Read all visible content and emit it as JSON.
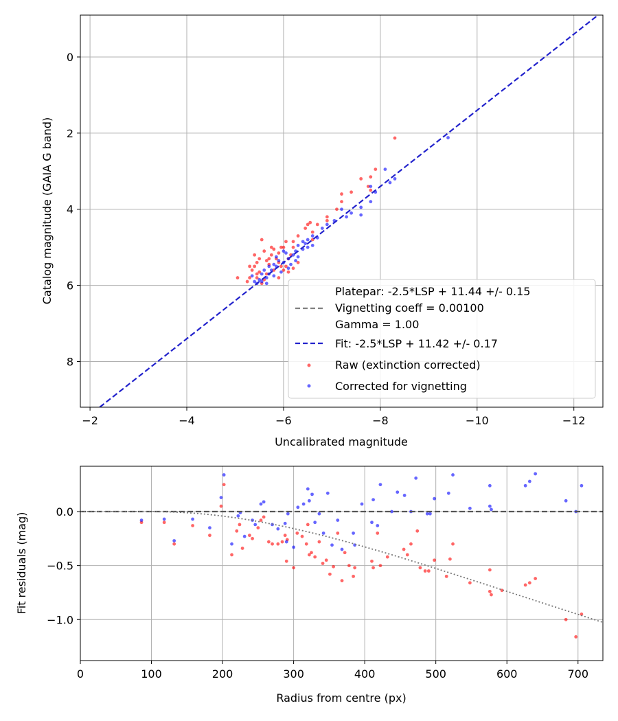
{
  "chart_data": [
    {
      "type": "scatter",
      "xlabel": "Uncalibrated magnitude",
      "ylabel": "Catalog magnitude (GAIA G band)",
      "xlim": [
        -1.8,
        -12.6
      ],
      "ylim": [
        9.2,
        -1.1
      ],
      "y_inverted": true,
      "x_inverted": true,
      "grid": true,
      "xticks": [
        -2,
        -4,
        -6,
        -8,
        -10,
        -12
      ],
      "xtick_labels": [
        "−2",
        "−4",
        "−6",
        "−8",
        "−10",
        "−12"
      ],
      "yticks": [
        0,
        2,
        4,
        6,
        8
      ],
      "ytick_labels": [
        "0",
        "2",
        "4",
        "6",
        "8"
      ],
      "legend_location": "lower-right",
      "legend": {
        "platepar_line1": "Platepar: -2.5*LSP + 11.44 +/- 0.15",
        "platepar_line2": "Vignetting coeff = 0.00100",
        "platepar_line3": "Gamma = 1.00",
        "fit": "Fit: -2.5*LSP + 11.42 +/- 0.17",
        "raw": "Raw (extinction corrected)",
        "corrected": "Corrected for vignetting"
      },
      "colors": {
        "raw": "#ff0000",
        "corrected": "#0000ff",
        "fit": "#2222cc",
        "platepar": "#808080"
      },
      "lines": [
        {
          "name": "Fit: -2.5*LSP + 11.42 +/- 0.17",
          "style": "dashed",
          "color": "#2222cc",
          "x": [
            -1.8,
            -12.6
          ],
          "y": [
            9.6,
            -1.2
          ]
        }
      ],
      "series": [
        {
          "name": "Raw (extinction corrected)",
          "color": "#ff0000",
          "points": [
            [
              -8.3,
              2.13
            ],
            [
              -7.8,
              3.15
            ],
            [
              -7.75,
              3.4
            ],
            [
              -7.8,
              3.5
            ],
            [
              -7.9,
              2.95
            ],
            [
              -7.6,
              3.2
            ],
            [
              -7.4,
              3.55
            ],
            [
              -7.2,
              3.6
            ],
            [
              -7.2,
              3.8
            ],
            [
              -7.1,
              4.0
            ],
            [
              -6.9,
              4.2
            ],
            [
              -6.9,
              4.3
            ],
            [
              -6.7,
              4.4
            ],
            [
              -6.6,
              4.6
            ],
            [
              -6.5,
              4.4
            ],
            [
              -6.6,
              4.8
            ],
            [
              -6.45,
              4.5
            ],
            [
              -6.55,
              4.35
            ],
            [
              -6.3,
              4.7
            ],
            [
              -6.2,
              4.85
            ],
            [
              -6.2,
              5.0
            ],
            [
              -6.0,
              5.0
            ],
            [
              -6.05,
              4.85
            ],
            [
              -5.9,
              5.15
            ],
            [
              -5.8,
              5.05
            ],
            [
              -5.75,
              5.2
            ],
            [
              -5.7,
              5.3
            ],
            [
              -5.6,
              5.1
            ],
            [
              -5.55,
              4.8
            ],
            [
              -5.5,
              5.3
            ],
            [
              -5.45,
              5.4
            ],
            [
              -5.4,
              5.5
            ],
            [
              -5.35,
              5.6
            ],
            [
              -5.3,
              5.5
            ],
            [
              -5.3,
              5.8
            ],
            [
              -5.25,
              5.9
            ],
            [
              -5.05,
              5.8
            ],
            [
              -5.45,
              5.8
            ],
            [
              -5.55,
              5.95
            ],
            [
              -5.6,
              5.85
            ],
            [
              -5.7,
              5.45
            ],
            [
              -5.8,
              5.6
            ],
            [
              -5.85,
              5.3
            ],
            [
              -5.9,
              5.4
            ],
            [
              -5.95,
              5.5
            ],
            [
              -6.0,
              5.6
            ],
            [
              -6.1,
              5.3
            ],
            [
              -6.15,
              5.2
            ],
            [
              -5.65,
              5.7
            ],
            [
              -5.5,
              5.65
            ],
            [
              -5.4,
              5.2
            ],
            [
              -5.75,
              5.0
            ],
            [
              -5.9,
              5.8
            ],
            [
              -6.1,
              5.65
            ],
            [
              -6.2,
              5.55
            ],
            [
              -6.3,
              5.4
            ],
            [
              -5.65,
              5.35
            ],
            [
              -5.95,
              5.0
            ],
            [
              -6.05,
              5.5
            ],
            [
              -5.45,
              5.7
            ]
          ]
        },
        {
          "name": "Corrected for vignetting",
          "color": "#0000ff",
          "points": [
            [
              -9.4,
              2.12
            ],
            [
              -8.3,
              3.2
            ],
            [
              -8.2,
              3.3
            ],
            [
              -8.1,
              2.95
            ],
            [
              -7.9,
              3.55
            ],
            [
              -7.8,
              3.4
            ],
            [
              -7.8,
              3.8
            ],
            [
              -7.6,
              3.95
            ],
            [
              -7.6,
              4.15
            ],
            [
              -7.4,
              4.1
            ],
            [
              -7.3,
              4.2
            ],
            [
              -7.2,
              4.0
            ],
            [
              -7.05,
              4.3
            ],
            [
              -6.9,
              4.4
            ],
            [
              -6.8,
              4.5
            ],
            [
              -6.6,
              4.7
            ],
            [
              -6.5,
              4.8
            ],
            [
              -6.6,
              4.95
            ],
            [
              -6.4,
              4.85
            ],
            [
              -6.3,
              4.95
            ],
            [
              -6.25,
              5.1
            ],
            [
              -6.2,
              5.2
            ],
            [
              -6.1,
              5.3
            ],
            [
              -6.05,
              5.15
            ],
            [
              -6.0,
              5.4
            ],
            [
              -5.9,
              5.35
            ],
            [
              -5.85,
              5.5
            ],
            [
              -5.8,
              5.45
            ],
            [
              -5.75,
              5.6
            ],
            [
              -5.7,
              5.7
            ],
            [
              -5.65,
              5.8
            ],
            [
              -5.6,
              5.6
            ],
            [
              -5.55,
              5.9
            ],
            [
              -5.5,
              5.85
            ],
            [
              -5.4,
              5.9
            ],
            [
              -5.35,
              5.75
            ],
            [
              -5.55,
              5.7
            ],
            [
              -5.7,
              5.5
            ],
            [
              -5.85,
              5.25
            ],
            [
              -6.0,
              5.1
            ],
            [
              -6.15,
              5.45
            ],
            [
              -6.3,
              5.25
            ],
            [
              -6.4,
              5.05
            ],
            [
              -6.5,
              5.0
            ],
            [
              -5.95,
              5.65
            ],
            [
              -6.1,
              5.55
            ],
            [
              -5.8,
              5.75
            ],
            [
              -5.65,
              5.95
            ],
            [
              -5.45,
              5.95
            ],
            [
              -6.25,
              5.35
            ],
            [
              -6.45,
              4.9
            ],
            [
              -6.7,
              4.75
            ]
          ]
        }
      ]
    },
    {
      "type": "scatter",
      "xlabel": "Radius from centre (px)",
      "ylabel": "Fit residuals (mag)",
      "xlim": [
        0,
        735
      ],
      "ylim": [
        -1.38,
        0.42
      ],
      "grid": true,
      "xticks": [
        0,
        100,
        200,
        300,
        400,
        500,
        600,
        700
      ],
      "xtick_labels": [
        "0",
        "100",
        "200",
        "300",
        "400",
        "500",
        "600",
        "700"
      ],
      "yticks": [
        0.0,
        -0.5,
        -1.0
      ],
      "ytick_labels": [
        "0.0",
        "−0.5",
        "−1.0"
      ],
      "lines": [
        {
          "name": "zero",
          "style": "dashed",
          "color": "#555555",
          "x": [
            0,
            735
          ],
          "y": [
            0,
            0
          ]
        },
        {
          "name": "vignetting",
          "style": "dotted",
          "color": "#777777",
          "vignetting_coeff": 0.001,
          "start_radius": 100
        }
      ],
      "series": [
        {
          "name": "Raw (extinction corrected)",
          "color": "#ff0000",
          "points": [
            [
              86,
              -0.1
            ],
            [
              118,
              -0.1
            ],
            [
              132,
              -0.3
            ],
            [
              158,
              -0.13
            ],
            [
              182,
              -0.22
            ],
            [
              198,
              0.05
            ],
            [
              202,
              0.25
            ],
            [
              213,
              -0.4
            ],
            [
              220,
              -0.18
            ],
            [
              224,
              -0.12
            ],
            [
              228,
              -0.34
            ],
            [
              238,
              -0.22
            ],
            [
              242,
              -0.25
            ],
            [
              250,
              -0.15
            ],
            [
              254,
              -0.08
            ],
            [
              258,
              -0.05
            ],
            [
              265,
              -0.28
            ],
            [
              270,
              -0.3
            ],
            [
              278,
              -0.3
            ],
            [
              284,
              -0.28
            ],
            [
              288,
              -0.22
            ],
            [
              290,
              -0.46
            ],
            [
              291,
              -0.26
            ],
            [
              300,
              -0.52
            ],
            [
              305,
              -0.2
            ],
            [
              312,
              -0.23
            ],
            [
              318,
              -0.3
            ],
            [
              320,
              -0.12
            ],
            [
              322,
              -0.4
            ],
            [
              325,
              -0.38
            ],
            [
              330,
              -0.42
            ],
            [
              336,
              -0.28
            ],
            [
              341,
              -0.48
            ],
            [
              346,
              -0.45
            ],
            [
              351,
              -0.58
            ],
            [
              356,
              -0.51
            ],
            [
              362,
              -0.2
            ],
            [
              368,
              -0.64
            ],
            [
              372,
              -0.38
            ],
            [
              378,
              -0.5
            ],
            [
              384,
              -0.6
            ],
            [
              386,
              -0.52
            ],
            [
              410,
              -0.46
            ],
            [
              412,
              -0.52
            ],
            [
              418,
              -0.2
            ],
            [
              422,
              -0.5
            ],
            [
              432,
              -0.42
            ],
            [
              455,
              -0.35
            ],
            [
              460,
              -0.4
            ],
            [
              465,
              -0.3
            ],
            [
              474,
              -0.18
            ],
            [
              478,
              -0.52
            ],
            [
              485,
              -0.55
            ],
            [
              490,
              -0.55
            ],
            [
              498,
              -0.45
            ],
            [
              515,
              -0.6
            ],
            [
              520,
              -0.44
            ],
            [
              524,
              -0.3
            ],
            [
              548,
              -0.66
            ],
            [
              576,
              -0.54
            ],
            [
              576,
              -0.74
            ],
            [
              578,
              -0.77
            ],
            [
              593,
              -0.73
            ],
            [
              626,
              -0.68
            ],
            [
              632,
              -0.66
            ],
            [
              640,
              -0.62
            ],
            [
              683,
              -1.0
            ],
            [
              697,
              -1.16
            ],
            [
              705,
              -0.95
            ]
          ]
        },
        {
          "name": "Corrected for vignetting",
          "color": "#0000ff",
          "points": [
            [
              86,
              -0.08
            ],
            [
              118,
              -0.07
            ],
            [
              132,
              -0.27
            ],
            [
              158,
              -0.07
            ],
            [
              182,
              -0.15
            ],
            [
              198,
              0.13
            ],
            [
              202,
              0.34
            ],
            [
              213,
              -0.3
            ],
            [
              222,
              -0.04
            ],
            [
              225,
              -0.01
            ],
            [
              231,
              -0.23
            ],
            [
              242,
              -0.08
            ],
            [
              246,
              -0.12
            ],
            [
              254,
              0.07
            ],
            [
              258,
              0.09
            ],
            [
              270,
              -0.12
            ],
            [
              278,
              -0.16
            ],
            [
              288,
              -0.11
            ],
            [
              290,
              -0.28
            ],
            [
              292,
              -0.02
            ],
            [
              300,
              -0.33
            ],
            [
              306,
              0.04
            ],
            [
              314,
              0.07
            ],
            [
              320,
              0.21
            ],
            [
              322,
              0.1
            ],
            [
              326,
              0.16
            ],
            [
              330,
              -0.1
            ],
            [
              336,
              -0.02
            ],
            [
              342,
              -0.2
            ],
            [
              348,
              0.17
            ],
            [
              354,
              -0.31
            ],
            [
              362,
              -0.08
            ],
            [
              368,
              -0.35
            ],
            [
              384,
              -0.2
            ],
            [
              386,
              -0.31
            ],
            [
              396,
              0.07
            ],
            [
              410,
              -0.1
            ],
            [
              412,
              0.11
            ],
            [
              418,
              -0.13
            ],
            [
              422,
              0.25
            ],
            [
              438,
              0.0
            ],
            [
              446,
              0.18
            ],
            [
              456,
              0.15
            ],
            [
              465,
              0.0
            ],
            [
              472,
              0.31
            ],
            [
              488,
              -0.02
            ],
            [
              492,
              -0.02
            ],
            [
              498,
              0.12
            ],
            [
              518,
              0.17
            ],
            [
              524,
              0.34
            ],
            [
              548,
              0.03
            ],
            [
              576,
              0.05
            ],
            [
              576,
              0.24
            ],
            [
              578,
              0.02
            ],
            [
              626,
              0.24
            ],
            [
              632,
              0.28
            ],
            [
              640,
              0.35
            ],
            [
              683,
              0.1
            ],
            [
              697,
              0.0
            ],
            [
              705,
              0.24
            ]
          ]
        }
      ]
    }
  ]
}
